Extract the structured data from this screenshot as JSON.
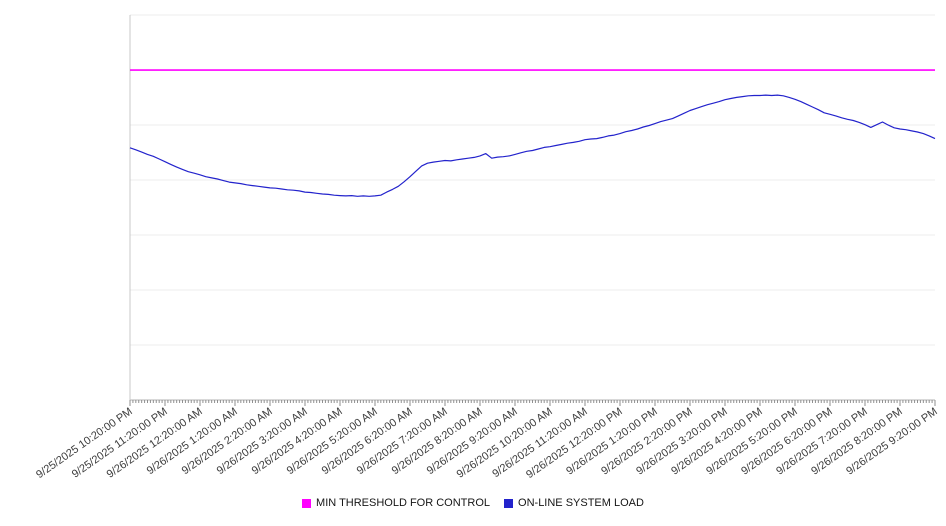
{
  "chart_data": {
    "type": "line",
    "title": "",
    "xlabel": "",
    "ylabel": "",
    "grid": true,
    "grid_divisions": 7,
    "legend_position": "bottom-center",
    "ylim": [
      0,
      100
    ],
    "minor_ticks_per_hour": 12,
    "x_interval_minutes": 10,
    "x_tick_labels": [
      "9/25/2025 10:20:00 PM",
      "9/25/2025 11:20:00 PM",
      "9/26/2025 12:20:00 AM",
      "9/26/2025 1:20:00 AM",
      "9/26/2025 2:20:00 AM",
      "9/26/2025 3:20:00 AM",
      "9/26/2025 4:20:00 AM",
      "9/26/2025 5:20:00 AM",
      "9/26/2025 6:20:00 AM",
      "9/26/2025 7:20:00 AM",
      "9/26/2025 8:20:00 AM",
      "9/26/2025 9:20:00 AM",
      "9/26/2025 10:20:00 AM",
      "9/26/2025 11:20:00 AM",
      "9/26/2025 12:20:00 PM",
      "9/26/2025 1:20:00 PM",
      "9/26/2025 2:20:00 PM",
      "9/26/2025 3:20:00 PM",
      "9/26/2025 4:20:00 PM",
      "9/26/2025 5:20:00 PM",
      "9/26/2025 6:20:00 PM",
      "9/26/2025 7:20:00 PM",
      "9/26/2025 8:20:00 PM",
      "9/26/2025 9:20:00 PM"
    ],
    "series": [
      {
        "name": "MIN THRESHOLD FOR CONTROL",
        "type": "constant-line",
        "color": "#ff00ff",
        "value": 85.7
      },
      {
        "name": "ON-LINE SYSTEM LOAD",
        "type": "line",
        "color": "#2323cc",
        "values": [
          65.5,
          65.0,
          64.4,
          63.8,
          63.3,
          62.6,
          61.9,
          61.2,
          60.5,
          59.9,
          59.3,
          58.9,
          58.5,
          58.0,
          57.7,
          57.4,
          57.0,
          56.6,
          56.4,
          56.2,
          55.9,
          55.7,
          55.5,
          55.3,
          55.1,
          55.0,
          54.8,
          54.6,
          54.5,
          54.3,
          54.0,
          53.9,
          53.7,
          53.5,
          53.4,
          53.2,
          53.1,
          53.0,
          53.1,
          52.9,
          53.0,
          52.9,
          53.0,
          53.2,
          54.0,
          54.7,
          55.5,
          56.7,
          58.0,
          59.4,
          60.8,
          61.5,
          61.8,
          62.0,
          62.2,
          62.1,
          62.4,
          62.6,
          62.8,
          63.0,
          63.4,
          64.0,
          62.8,
          63.1,
          63.2,
          63.4,
          63.8,
          64.2,
          64.6,
          64.8,
          65.2,
          65.6,
          65.8,
          66.1,
          66.4,
          66.7,
          66.9,
          67.2,
          67.6,
          67.8,
          67.9,
          68.2,
          68.6,
          68.8,
          69.2,
          69.7,
          70.0,
          70.4,
          70.9,
          71.3,
          71.8,
          72.3,
          72.7,
          73.1,
          73.8,
          74.5,
          75.2,
          75.7,
          76.2,
          76.7,
          77.1,
          77.5,
          78.0,
          78.3,
          78.6,
          78.8,
          79.0,
          79.1,
          79.1,
          79.2,
          79.1,
          79.2,
          79.0,
          78.6,
          78.1,
          77.5,
          76.8,
          76.1,
          75.4,
          74.6,
          74.2,
          73.8,
          73.3,
          72.9,
          72.6,
          72.1,
          71.5,
          70.8,
          71.5,
          72.2,
          71.4,
          70.7,
          70.4,
          70.2,
          69.9,
          69.6,
          69.2,
          68.6,
          67.9
        ]
      }
    ]
  }
}
